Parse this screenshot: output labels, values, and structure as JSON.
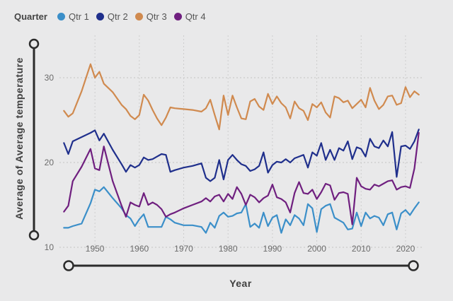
{
  "legend": {
    "title": "Quarter",
    "items": [
      {
        "label": "Qtr 1",
        "color": "#3b8fc9"
      },
      {
        "label": "Qtr 2",
        "color": "#1f2f8c"
      },
      {
        "label": "Qtr 3",
        "color": "#d08a4f"
      },
      {
        "label": "Qtr 4",
        "color": "#6f1f7f"
      }
    ]
  },
  "chart_data": {
    "type": "line",
    "xlabel": "Year",
    "ylabel": "Average of Average temperature",
    "xlim": [
      1942,
      2024
    ],
    "ylim": [
      10,
      35
    ],
    "x_ticks": [
      1950,
      1960,
      1970,
      1980,
      1990,
      2000,
      2010,
      2020
    ],
    "y_ticks": [
      10,
      20,
      30
    ],
    "grid": "dotted",
    "legend_position": "top-left",
    "series": [
      {
        "name": "Qtr 1",
        "color": "#3b8fc9",
        "x": [
          1943,
          1944,
          1945,
          1947,
          1949,
          1950,
          1951,
          1952,
          1954,
          1956,
          1957,
          1958,
          1959,
          1960,
          1961,
          1962,
          1963,
          1964,
          1965,
          1966,
          1967,
          1968,
          1970,
          1972,
          1974,
          1975,
          1976,
          1977,
          1978,
          1979,
          1980,
          1981,
          1982,
          1983,
          1984,
          1985,
          1986,
          1987,
          1988,
          1989,
          1990,
          1991,
          1992,
          1993,
          1994,
          1995,
          1996,
          1997,
          1998,
          1999,
          2000,
          2001,
          2002,
          2003,
          2004,
          2005,
          2006,
          2007,
          2008,
          2009,
          2010,
          2011,
          2012,
          2013,
          2014,
          2015,
          2016,
          2017,
          2018,
          2019,
          2020,
          2021,
          2022,
          2023
        ],
        "values": [
          12.3,
          12.3,
          12.5,
          12.8,
          15.2,
          16.8,
          16.6,
          17.1,
          15.8,
          14.6,
          13.8,
          13.4,
          12.5,
          13.3,
          13.9,
          12.4,
          12.4,
          12.4,
          12.4,
          13.6,
          13.3,
          12.9,
          12.6,
          12.6,
          12.4,
          11.7,
          12.9,
          12.3,
          13.7,
          14.1,
          13.6,
          13.7,
          14,
          14.1,
          15.1,
          12.4,
          12.8,
          12.3,
          14.1,
          12.5,
          13.5,
          13.8,
          11.7,
          13.3,
          12.6,
          13.8,
          13.4,
          12.6,
          15.1,
          14.6,
          11.8,
          14.5,
          14.9,
          15.1,
          13.5,
          13.2,
          12.9,
          12.1,
          12.2,
          14.1,
          12.5,
          14.1,
          13.4,
          13.7,
          13.5,
          12.6,
          13.9,
          14.1,
          12.1,
          14,
          14.4,
          13.8,
          14.6,
          15.3
        ]
      },
      {
        "name": "Qtr 2",
        "color": "#1f2f8c",
        "x": [
          1943,
          1944,
          1945,
          1947,
          1949,
          1950,
          1951,
          1952,
          1954,
          1956,
          1957,
          1958,
          1959,
          1960,
          1961,
          1962,
          1963,
          1964,
          1965,
          1966,
          1967,
          1968,
          1970,
          1972,
          1974,
          1975,
          1976,
          1977,
          1978,
          1979,
          1980,
          1981,
          1982,
          1983,
          1984,
          1985,
          1986,
          1987,
          1988,
          1989,
          1990,
          1991,
          1992,
          1993,
          1994,
          1995,
          1996,
          1997,
          1998,
          1999,
          2000,
          2001,
          2002,
          2003,
          2004,
          2005,
          2006,
          2007,
          2008,
          2009,
          2010,
          2011,
          2012,
          2013,
          2014,
          2015,
          2016,
          2017,
          2018,
          2019,
          2020,
          2021,
          2022,
          2023
        ],
        "values": [
          22.3,
          21,
          22.5,
          23,
          23.5,
          23.8,
          22.6,
          23.4,
          21.5,
          19.8,
          18.9,
          19.7,
          19.4,
          19.7,
          20.6,
          20.3,
          20.4,
          20.7,
          21,
          20.9,
          18.9,
          19.1,
          19.4,
          19.6,
          19.9,
          18.2,
          17.8,
          18.2,
          20.3,
          18,
          20.3,
          20.9,
          20.3,
          19.8,
          19.6,
          19,
          19.2,
          19.6,
          21.2,
          18.8,
          19.7,
          20.1,
          20,
          20.4,
          20,
          20.5,
          20.7,
          20.9,
          19.4,
          21.2,
          20.8,
          22.3,
          20.3,
          21.5,
          20.3,
          21.7,
          21.4,
          22.5,
          20.4,
          21.8,
          21.6,
          20.7,
          22.8,
          21.9,
          21.7,
          22.6,
          21.9,
          23.6,
          18.3,
          21.9,
          22,
          21.6,
          22.5,
          23.9
        ]
      },
      {
        "name": "Qtr 3",
        "color": "#d08a4f",
        "x": [
          1943,
          1944,
          1945,
          1947,
          1949,
          1950,
          1951,
          1952,
          1954,
          1956,
          1957,
          1958,
          1959,
          1960,
          1961,
          1962,
          1963,
          1964,
          1965,
          1966,
          1967,
          1968,
          1970,
          1972,
          1974,
          1975,
          1976,
          1977,
          1978,
          1979,
          1980,
          1981,
          1982,
          1983,
          1984,
          1985,
          1986,
          1987,
          1988,
          1989,
          1990,
          1991,
          1992,
          1993,
          1994,
          1995,
          1996,
          1997,
          1998,
          1999,
          2000,
          2001,
          2002,
          2003,
          2004,
          2005,
          2006,
          2007,
          2008,
          2009,
          2010,
          2011,
          2012,
          2013,
          2014,
          2015,
          2016,
          2017,
          2018,
          2019,
          2020,
          2021,
          2022,
          2023
        ],
        "values": [
          26.1,
          25.4,
          25.8,
          28.4,
          31.6,
          30,
          30.7,
          29.3,
          28.3,
          26.8,
          26.3,
          25.5,
          25.1,
          25.6,
          28,
          27.3,
          26.2,
          25.2,
          24.4,
          25.3,
          26.5,
          26.4,
          26.3,
          26.2,
          26,
          26.4,
          27.4,
          25.6,
          23.9,
          27.9,
          25.6,
          27.9,
          26.5,
          25.2,
          25.1,
          27.2,
          27.5,
          26.6,
          26.2,
          28.1,
          26.9,
          27.8,
          27,
          26.5,
          25.2,
          27.2,
          26.4,
          26.1,
          25,
          26.9,
          26.5,
          27.1,
          25.9,
          25.3,
          27.8,
          27.6,
          27.1,
          27.3,
          26.4,
          26.9,
          27.4,
          26.5,
          28.8,
          27.3,
          26.3,
          26.8,
          27.8,
          27.9,
          26.8,
          27,
          28.9,
          27.7,
          28.4,
          28
        ]
      },
      {
        "name": "Qtr 4",
        "color": "#6f1f7f",
        "x": [
          1943,
          1944,
          1945,
          1947,
          1949,
          1950,
          1951,
          1952,
          1954,
          1956,
          1957,
          1958,
          1959,
          1960,
          1961,
          1962,
          1963,
          1964,
          1965,
          1966,
          1967,
          1968,
          1970,
          1972,
          1974,
          1975,
          1976,
          1977,
          1978,
          1979,
          1980,
          1981,
          1982,
          1983,
          1984,
          1985,
          1986,
          1987,
          1988,
          1989,
          1990,
          1991,
          1992,
          1993,
          1994,
          1995,
          1996,
          1997,
          1998,
          1999,
          2000,
          2001,
          2002,
          2003,
          2004,
          2005,
          2006,
          2007,
          2008,
          2009,
          2010,
          2011,
          2012,
          2013,
          2014,
          2015,
          2016,
          2017,
          2018,
          2019,
          2020,
          2021,
          2022,
          2023
        ],
        "values": [
          14.2,
          14.9,
          17.8,
          19.5,
          21.6,
          19.3,
          19.1,
          21.9,
          17.8,
          14.9,
          13.6,
          15.3,
          15,
          14.8,
          16.4,
          15,
          15.3,
          15,
          14.5,
          13.6,
          13.9,
          14.1,
          14.6,
          15,
          15.4,
          15.8,
          15.4,
          16,
          16.2,
          15.4,
          16.3,
          15.7,
          17.1,
          16.3,
          15,
          16.2,
          15.9,
          15.3,
          15.8,
          16.1,
          17.4,
          15.9,
          15.7,
          15.3,
          14.1,
          16.4,
          17.7,
          16.4,
          16.3,
          16.8,
          15.7,
          16.5,
          17.5,
          17.3,
          15.6,
          16.4,
          16.5,
          16.3,
          12.7,
          18.2,
          17.2,
          16.9,
          16.8,
          17.4,
          17.2,
          17.5,
          17.8,
          17.9,
          16.8,
          17.1,
          17.2,
          17,
          19.3,
          23.5
        ]
      }
    ]
  }
}
